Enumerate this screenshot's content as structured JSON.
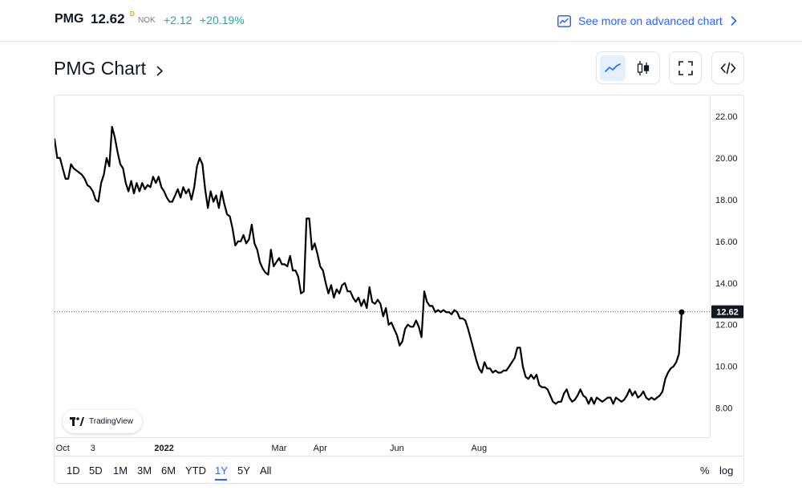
{
  "quote": {
    "symbol": "PMG",
    "price": "12.62",
    "price_flag": "D",
    "currency": "NOK",
    "change": "+2.12",
    "change_pct": "+20.19%",
    "change_color": "#22ab94"
  },
  "header": {
    "advanced_link": "See more on advanced chart",
    "advanced_icon": "chart-line-icon",
    "chevron_icon": "chevron-right-icon"
  },
  "chart_header": {
    "title": "PMG Chart",
    "chevron_icon": "chevron-right-icon"
  },
  "toolbar": {
    "line_icon": "line-chart-icon",
    "candle_icon": "candlestick-icon",
    "fullscreen_icon": "fullscreen-icon",
    "embed_icon": "embed-code-icon",
    "active": "line",
    "active_bg": "#e3effd",
    "accent": "#2962ff"
  },
  "branding": {
    "logo_icon": "tradingview-logo-icon",
    "label": "TradingView"
  },
  "range_selector": {
    "items": [
      "1D",
      "5D",
      "1M",
      "3M",
      "6M",
      "YTD",
      "1Y",
      "5Y",
      "All"
    ],
    "active": "1Y",
    "percent_label": "%",
    "log_label": "log"
  },
  "chart_data": {
    "type": "line",
    "title": "PMG Chart",
    "xlabel": "",
    "ylabel": "",
    "x_ticks": [
      {
        "label": "Oct",
        "pos": 3
      },
      {
        "label": "3",
        "pos": 14
      },
      {
        "label": "2022",
        "pos": 40
      },
      {
        "label": "Mar",
        "pos": 82
      },
      {
        "label": "Apr",
        "pos": 97
      },
      {
        "label": "Jun",
        "pos": 125
      },
      {
        "label": "Aug",
        "pos": 155
      }
    ],
    "y_ticks": [
      "8.00",
      "10.00",
      "12.00",
      "14.00",
      "16.00",
      "18.00",
      "20.00",
      "22.00"
    ],
    "ylim": [
      6.6,
      23.0
    ],
    "grid": false,
    "last_price_label": "12.62",
    "last_price": 12.62,
    "line_color": "#000000",
    "series": [
      {
        "values": [
          20.9,
          20.0,
          20.0,
          19.5,
          19.0,
          19.0,
          19.7,
          19.5,
          19.4,
          19.3,
          19.2,
          19.0,
          18.7,
          18.6,
          18.4,
          18.0,
          17.9,
          18.8,
          19.2,
          20.0,
          19.6,
          21.5,
          21.0,
          20.3,
          19.7,
          19.5,
          18.8,
          18.4,
          18.9,
          18.3,
          18.8,
          18.4,
          18.8,
          18.5,
          18.7,
          18.6,
          19.1,
          18.8,
          19.1,
          18.6,
          18.4,
          18.1,
          17.9,
          17.9,
          18.2,
          18.5,
          18.1,
          18.6,
          18.3,
          18.5,
          18.0,
          18.6,
          19.6,
          20.0,
          19.7,
          18.5,
          17.6,
          18.4,
          17.9,
          18.2,
          17.6,
          18.4,
          17.8,
          17.3,
          17.2,
          16.6,
          15.8,
          16.0,
          16.0,
          16.3,
          15.9,
          16.1,
          16.8,
          15.9,
          15.6,
          15.0,
          14.7,
          14.5,
          14.4,
          15.6,
          14.8,
          15.0,
          15.2,
          14.9,
          14.9,
          14.8,
          15.3,
          14.6,
          14.6,
          14.3,
          13.5,
          13.6,
          17.1,
          17.1,
          15.6,
          15.9,
          15.4,
          14.8,
          14.6,
          14.0,
          13.5,
          13.9,
          13.3,
          13.7,
          13.5,
          13.9,
          14.0,
          13.6,
          13.6,
          13.3,
          13.1,
          13.3,
          12.9,
          13.2,
          12.8,
          13.8,
          13.1,
          13.0,
          13.2,
          13.0,
          12.4,
          12.8,
          12.0,
          12.1,
          11.8,
          11.5,
          11.0,
          11.2,
          11.8,
          12.0,
          11.9,
          11.9,
          12.2,
          11.9,
          11.4,
          13.6,
          13.1,
          12.9,
          12.9,
          12.6,
          12.7,
          12.6,
          12.7,
          12.6,
          12.6,
          12.5,
          12.7,
          12.6,
          12.3,
          12.3,
          12.2,
          11.8,
          11.3,
          10.8,
          10.3,
          9.9,
          9.7,
          10.2,
          9.9,
          9.9,
          9.7,
          9.8,
          9.7,
          9.7,
          9.8,
          9.8,
          10.0,
          10.2,
          10.4,
          10.9,
          10.9,
          10.0,
          9.5,
          9.4,
          9.6,
          9.4,
          9.6,
          9.1,
          9.0,
          9.0,
          8.9,
          8.6,
          8.3,
          8.2,
          8.3,
          8.3,
          8.7,
          8.9,
          8.5,
          8.3,
          8.4,
          8.6,
          8.9,
          8.6,
          8.5,
          8.2,
          8.5,
          8.2,
          8.5,
          8.4,
          8.3,
          8.4,
          8.5,
          8.5,
          8.2,
          8.5,
          8.4,
          8.3,
          8.4,
          8.6,
          8.9,
          8.6,
          8.8,
          8.5,
          8.6,
          8.8,
          8.5,
          8.4,
          8.5,
          8.4,
          8.5,
          8.6,
          8.8,
          9.4,
          9.7,
          9.9,
          10.0,
          10.2,
          10.6,
          12.6
        ]
      }
    ]
  }
}
